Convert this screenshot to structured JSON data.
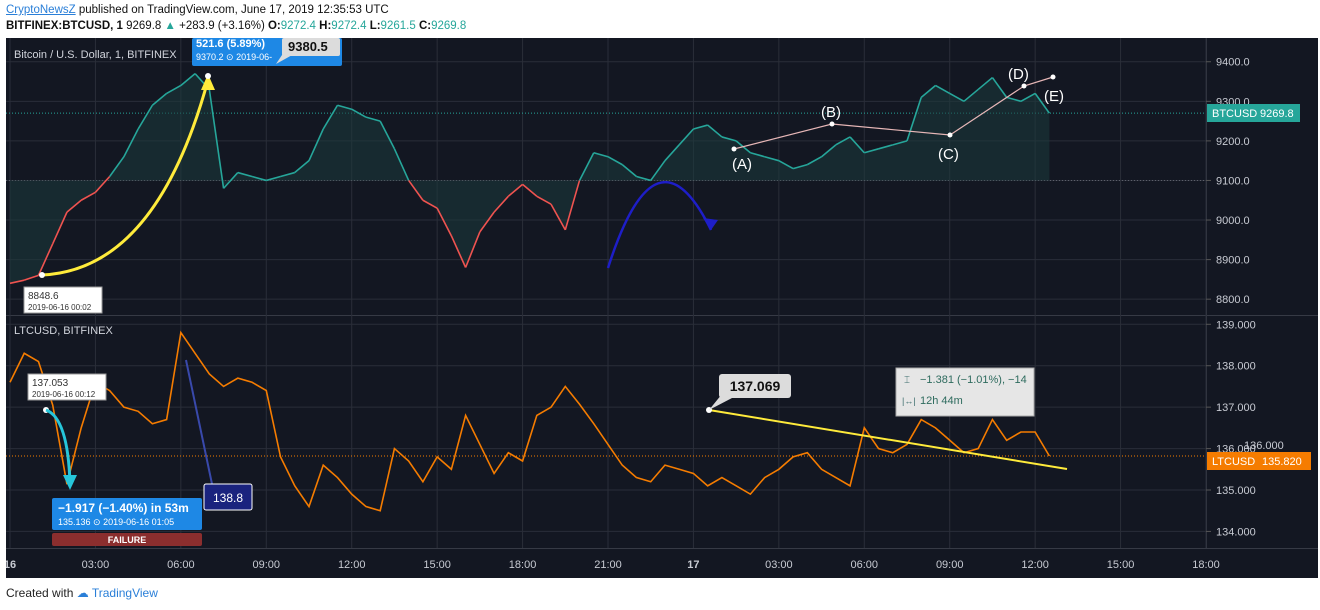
{
  "header": {
    "author": "CryptoNewsZ",
    "published_text": "published on TradingView.com, June 17, 2019 12:35:53 UTC",
    "symbol": "BITFINEX:BTCUSD, 1",
    "last": "9269.8",
    "change": "+283.9 (+3.16%)",
    "o_label": "O:",
    "o": "9272.4",
    "h_label": "H:",
    "h": "9272.4",
    "l_label": "L:",
    "l": "9261.5",
    "c_label": "C:",
    "c": "9269.8"
  },
  "footer": {
    "created_with": "Created with",
    "brand": "TradingView"
  },
  "colors": {
    "background": "#131722",
    "up": "#26a69a",
    "down": "#ef5350",
    "ltc": "#f57c00",
    "grid": "#2a2e39",
    "axis_text": "#c8cbd3",
    "yellow": "#ffeb3b",
    "cyan": "#26c6da",
    "blue": "#1976d2",
    "navy": "#1a237e"
  },
  "chart_data": [
    {
      "type": "line",
      "title": "Bitcoin / U.S. Dollar, 1, BITFINEX",
      "ylim": [
        8760,
        9460
      ],
      "ticks": [
        "9400.0",
        "9300.0",
        "9200.0",
        "9100.0",
        "9000.0",
        "8900.0",
        "8800.0"
      ],
      "baseline": 9100,
      "price_label": {
        "name": "BTCUSD",
        "value": "9269.8"
      },
      "x": [
        0,
        0.5,
        1,
        1.5,
        2,
        2.5,
        3,
        3.5,
        4,
        4.5,
        5,
        5.5,
        6,
        6.5,
        7,
        7.5,
        8,
        8.5,
        9,
        9.5,
        10,
        10.5,
        11,
        11.5,
        12,
        12.5,
        13,
        13.5,
        14,
        14.5,
        15,
        15.5,
        16,
        16.5,
        17,
        17.5,
        18,
        18.5,
        19,
        19.5,
        20,
        20.5,
        21,
        21.5,
        22,
        22.5,
        23,
        23.5,
        24,
        24.5,
        25,
        25.5,
        26,
        26.5,
        27,
        27.5,
        28,
        28.5,
        29,
        29.5,
        30,
        30.5,
        31,
        31.5,
        32,
        32.5,
        33,
        33.5,
        34,
        34.5,
        35,
        35.5,
        36,
        36.5
      ],
      "values": [
        8840,
        8848,
        8860,
        8940,
        9020,
        9050,
        9070,
        9110,
        9160,
        9230,
        9290,
        9320,
        9340,
        9370,
        9330,
        9080,
        9120,
        9110,
        9100,
        9110,
        9120,
        9150,
        9230,
        9290,
        9280,
        9260,
        9250,
        9180,
        9100,
        9050,
        9030,
        8960,
        8880,
        8970,
        9020,
        9060,
        9090,
        9060,
        9040,
        8975,
        9100,
        9170,
        9160,
        9140,
        9110,
        9100,
        9150,
        9190,
        9230,
        9240,
        9210,
        9200,
        9170,
        9160,
        9150,
        9130,
        9140,
        9160,
        9190,
        9210,
        9170,
        9180,
        9190,
        9200,
        9310,
        9340,
        9320,
        9300,
        9330,
        9360,
        9310,
        9300,
        9320,
        9270
      ]
    },
    {
      "type": "line",
      "title": "LTCUSD, BITFINEX",
      "ylim": [
        133.6,
        139.2
      ],
      "ticks": [
        "139.000",
        "138.000",
        "137.000",
        "136.000",
        "135.000",
        "134.000"
      ],
      "price_label": {
        "name": "LTCUSD",
        "value": "135.820"
      },
      "x": [
        0,
        0.5,
        1,
        1.5,
        2,
        2.5,
        3,
        3.5,
        4,
        4.5,
        5,
        5.5,
        6,
        6.5,
        7,
        7.5,
        8,
        8.5,
        9,
        9.5,
        10,
        10.5,
        11,
        11.5,
        12,
        12.5,
        13,
        13.5,
        14,
        14.5,
        15,
        15.5,
        16,
        16.5,
        17,
        17.5,
        18,
        18.5,
        19,
        19.5,
        20,
        20.5,
        21,
        21.5,
        22,
        22.5,
        23,
        23.5,
        24,
        24.5,
        25,
        25.5,
        26,
        26.5,
        27,
        27.5,
        28,
        28.5,
        29,
        29.5,
        30,
        30.5,
        31,
        31.5,
        32,
        32.5,
        33,
        33.5,
        34,
        34.5,
        35,
        35.5,
        36,
        36.5
      ],
      "values": [
        137.6,
        138.3,
        138.1,
        137.05,
        135.14,
        136.5,
        137.6,
        137.4,
        137.0,
        136.9,
        136.6,
        136.7,
        138.8,
        138.3,
        137.8,
        137.5,
        137.7,
        137.6,
        137.4,
        135.8,
        135.1,
        134.6,
        135.6,
        135.3,
        134.9,
        134.6,
        134.5,
        136.0,
        135.7,
        135.2,
        135.8,
        135.5,
        136.8,
        136.1,
        135.4,
        135.9,
        135.7,
        136.8,
        137.0,
        137.5,
        137.07,
        136.6,
        136.1,
        135.6,
        135.3,
        135.2,
        135.6,
        135.5,
        135.4,
        135.1,
        135.3,
        135.1,
        134.9,
        135.3,
        135.5,
        135.8,
        135.9,
        135.5,
        135.3,
        135.1,
        136.5,
        136.0,
        135.9,
        136.1,
        136.7,
        136.5,
        136.2,
        135.9,
        136.0,
        136.7,
        136.2,
        136.4,
        136.4,
        135.82
      ]
    }
  ],
  "x_axis": {
    "labels": [
      "16",
      "03:00",
      "06:00",
      "09:00",
      "12:00",
      "15:00",
      "18:00",
      "21:00",
      "17",
      "03:00",
      "06:00",
      "09:00",
      "12:00",
      "15:00",
      "18:00"
    ],
    "bold": [
      true,
      false,
      false,
      false,
      false,
      false,
      false,
      false,
      true,
      false,
      false,
      false,
      false,
      false,
      false
    ]
  },
  "annotations": {
    "btc_low_price": "8848.6",
    "btc_low_time": "2019-06-16 00:02",
    "btc_gain_top": "521.6 (5.89%)",
    "btc_gain_sub": "9370.2 ⊙ 2019-06-",
    "btc_high_callout": "9380.5",
    "wave_a": "(A)",
    "wave_b": "(B)",
    "wave_c": "(C)",
    "wave_d": "(D)",
    "wave_e": "(E)",
    "ltc_start_price": "137.053",
    "ltc_start_time": "2019-06-16 00:12",
    "ltc_drop_top": "−1.917 (−1.40%) in 53m",
    "ltc_drop_sub": "135.136 ⊙ 2019-06-16 01:05",
    "failure_label": "FAILURE",
    "ltc_spike_callout": "138.8",
    "ltc_peak_callout": "137.069",
    "measure_change": "−1.381 (−1.01%), −14",
    "measure_duration": "12h 44m",
    "ltc_right_partial": "136.000"
  }
}
